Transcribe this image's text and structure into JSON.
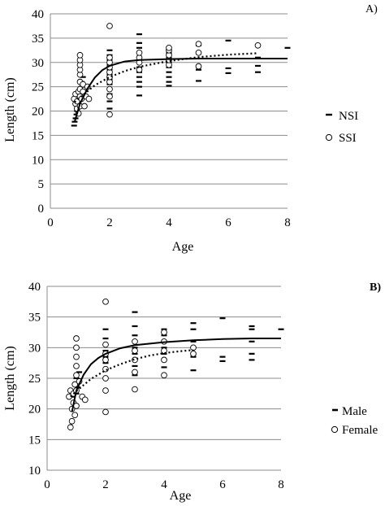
{
  "chart_data": [
    {
      "type": "scatter",
      "panel_label": "A)",
      "xlabel": "Age",
      "ylabel": "Length (cm)",
      "xlim": [
        0,
        8
      ],
      "ylim": [
        0,
        40
      ],
      "xticks": [
        0,
        2,
        4,
        6,
        8
      ],
      "yticks": [
        0,
        5,
        10,
        15,
        20,
        25,
        30,
        35,
        40
      ],
      "grid": "horizontal",
      "legend_position": "right",
      "series": [
        {
          "name": "NSI",
          "marker": "dash",
          "fit_line": "solid",
          "points": [
            [
              0.8,
              17.0
            ],
            [
              0.82,
              17.8
            ],
            [
              0.85,
              18.5
            ],
            [
              0.88,
              19.3
            ],
            [
              0.9,
              20.0
            ],
            [
              0.92,
              21.0
            ],
            [
              0.95,
              22.0
            ],
            [
              1.0,
              23.0
            ],
            [
              1.0,
              24.0
            ],
            [
              1.05,
              25.0
            ],
            [
              1.05,
              26.0
            ],
            [
              1.1,
              27.0
            ],
            [
              2.0,
              20.5
            ],
            [
              2.0,
              22.0
            ],
            [
              2.0,
              23.5
            ],
            [
              2.0,
              24.5
            ],
            [
              2.0,
              25.5
            ],
            [
              2.0,
              26.5
            ],
            [
              2.0,
              27.5
            ],
            [
              2.0,
              28.5
            ],
            [
              2.0,
              29.5
            ],
            [
              2.0,
              30.5
            ],
            [
              2.0,
              31.5
            ],
            [
              2.0,
              32.5
            ],
            [
              3.0,
              23.2
            ],
            [
              3.0,
              25.0
            ],
            [
              3.0,
              26.0
            ],
            [
              3.0,
              27.0
            ],
            [
              3.0,
              28.0
            ],
            [
              3.0,
              29.0
            ],
            [
              3.0,
              30.0
            ],
            [
              3.0,
              31.0
            ],
            [
              3.0,
              32.0
            ],
            [
              3.0,
              33.0
            ],
            [
              3.0,
              34.0
            ],
            [
              3.0,
              35.8
            ],
            [
              4.0,
              25.2
            ],
            [
              4.0,
              26.0
            ],
            [
              4.0,
              27.0
            ],
            [
              4.0,
              28.0
            ],
            [
              4.0,
              29.0
            ],
            [
              4.0,
              30.0
            ],
            [
              4.0,
              31.0
            ],
            [
              4.0,
              32.0
            ],
            [
              4.0,
              33.0
            ],
            [
              5.0,
              26.2
            ],
            [
              5.0,
              28.5
            ],
            [
              5.0,
              31.8
            ],
            [
              5.0,
              33.5
            ],
            [
              6.0,
              27.8
            ],
            [
              6.0,
              28.8
            ],
            [
              6.0,
              34.5
            ],
            [
              7.0,
              28.0
            ],
            [
              7.0,
              29.3
            ],
            [
              7.0,
              31.0
            ],
            [
              8.0,
              33.0
            ]
          ],
          "fit": [
            [
              0.82,
              17.8
            ],
            [
              1.0,
              21.5
            ],
            [
              1.25,
              24.6
            ],
            [
              1.5,
              26.9
            ],
            [
              1.75,
              28.4
            ],
            [
              2.0,
              29.3
            ],
            [
              2.5,
              30.2
            ],
            [
              3.0,
              30.5
            ],
            [
              4.0,
              30.7
            ],
            [
              5.0,
              30.8
            ],
            [
              6.0,
              30.8
            ],
            [
              7.0,
              30.8
            ],
            [
              8.0,
              30.8
            ]
          ]
        },
        {
          "name": "SSI",
          "marker": "circle",
          "fit_line": "dotted",
          "points": [
            [
              0.8,
              22.5
            ],
            [
              0.85,
              21.5
            ],
            [
              0.85,
              23.5
            ],
            [
              0.9,
              20.5
            ],
            [
              0.9,
              22.0
            ],
            [
              0.95,
              24.0
            ],
            [
              0.95,
              19.5
            ],
            [
              1.0,
              21.0
            ],
            [
              1.0,
              23.0
            ],
            [
              1.0,
              24.5
            ],
            [
              1.0,
              26.0
            ],
            [
              1.0,
              27.5
            ],
            [
              1.0,
              28.5
            ],
            [
              1.0,
              29.5
            ],
            [
              1.0,
              30.5
            ],
            [
              1.0,
              31.5
            ],
            [
              1.05,
              22.5
            ],
            [
              1.1,
              24.0
            ],
            [
              1.1,
              25.5
            ],
            [
              1.15,
              21.0
            ],
            [
              1.2,
              23.0
            ],
            [
              1.25,
              25.0
            ],
            [
              1.3,
              22.5
            ],
            [
              2.0,
              19.3
            ],
            [
              2.0,
              23.0
            ],
            [
              2.0,
              24.5
            ],
            [
              2.0,
              26.0
            ],
            [
              2.0,
              27.0
            ],
            [
              2.0,
              28.0
            ],
            [
              2.0,
              29.0
            ],
            [
              2.0,
              30.0
            ],
            [
              2.0,
              31.0
            ],
            [
              2.0,
              37.5
            ],
            [
              3.0,
              28.5
            ],
            [
              3.0,
              30.0
            ],
            [
              3.0,
              31.0
            ],
            [
              3.0,
              32.0
            ],
            [
              4.0,
              29.5
            ],
            [
              4.0,
              30.5
            ],
            [
              4.0,
              31.5
            ],
            [
              4.0,
              32.5
            ],
            [
              4.0,
              33.0
            ],
            [
              5.0,
              29.2
            ],
            [
              5.0,
              32.0
            ],
            [
              5.0,
              33.8
            ],
            [
              7.0,
              33.5
            ]
          ],
          "fit": [
            [
              0.82,
              21.8
            ],
            [
              1.0,
              22.8
            ],
            [
              1.5,
              25.3
            ],
            [
              2.0,
              27.0
            ],
            [
              2.5,
              28.2
            ],
            [
              3.0,
              29.1
            ],
            [
              4.0,
              30.3
            ],
            [
              5.0,
              31.1
            ],
            [
              6.0,
              31.6
            ],
            [
              7.0,
              31.9
            ]
          ]
        }
      ]
    },
    {
      "type": "scatter",
      "panel_label": "B)",
      "xlabel": "Age",
      "ylabel": "Length (cm)",
      "xlim": [
        0,
        8
      ],
      "ylim": [
        10,
        40
      ],
      "xticks": [
        0,
        2,
        4,
        6,
        8
      ],
      "yticks": [
        10,
        15,
        20,
        25,
        30,
        35,
        40
      ],
      "grid": "horizontal",
      "legend_position": "right",
      "series": [
        {
          "name": "Male",
          "marker": "dash",
          "fit_line": "solid",
          "points": [
            [
              0.85,
              22.0
            ],
            [
              0.9,
              23.0
            ],
            [
              0.95,
              24.0
            ],
            [
              1.0,
              22.5
            ],
            [
              1.0,
              25.0
            ],
            [
              1.05,
              23.5
            ],
            [
              1.1,
              26.0
            ],
            [
              2.0,
              23.0
            ],
            [
              2.0,
              25.0
            ],
            [
              2.0,
              26.5
            ],
            [
              2.0,
              27.5
            ],
            [
              2.0,
              28.5
            ],
            [
              2.0,
              29.5
            ],
            [
              2.0,
              30.5
            ],
            [
              2.0,
              31.5
            ],
            [
              2.0,
              33.0
            ],
            [
              3.0,
              25.5
            ],
            [
              3.0,
              27.0
            ],
            [
              3.0,
              28.0
            ],
            [
              3.0,
              29.0
            ],
            [
              3.0,
              30.0
            ],
            [
              3.0,
              31.0
            ],
            [
              3.0,
              32.0
            ],
            [
              3.0,
              33.5
            ],
            [
              3.0,
              35.8
            ],
            [
              4.0,
              26.8
            ],
            [
              4.0,
              29.0
            ],
            [
              4.0,
              30.0
            ],
            [
              4.0,
              31.0
            ],
            [
              4.0,
              32.0
            ],
            [
              4.0,
              33.0
            ],
            [
              5.0,
              26.3
            ],
            [
              5.0,
              28.5
            ],
            [
              5.0,
              31.0
            ],
            [
              5.0,
              33.0
            ],
            [
              5.0,
              34.0
            ],
            [
              6.0,
              27.8
            ],
            [
              6.0,
              28.5
            ],
            [
              6.0,
              34.8
            ],
            [
              7.0,
              28.0
            ],
            [
              7.0,
              29.0
            ],
            [
              7.0,
              31.0
            ],
            [
              7.0,
              33.0
            ],
            [
              7.0,
              33.5
            ],
            [
              8.0,
              33.0
            ]
          ],
          "fit": [
            [
              0.85,
              19.5
            ],
            [
              1.0,
              23.0
            ],
            [
              1.25,
              25.6
            ],
            [
              1.5,
              27.3
            ],
            [
              1.75,
              28.3
            ],
            [
              2.0,
              29.0
            ],
            [
              2.5,
              29.9
            ],
            [
              3.0,
              30.4
            ],
            [
              4.0,
              30.9
            ],
            [
              5.0,
              31.2
            ],
            [
              6.0,
              31.4
            ],
            [
              7.0,
              31.5
            ],
            [
              8.0,
              31.5
            ]
          ]
        },
        {
          "name": "Female",
          "marker": "circle",
          "fit_line": "dotted",
          "points": [
            [
              0.75,
              22.0
            ],
            [
              0.8,
              23.0
            ],
            [
              0.8,
              17.0
            ],
            [
              0.85,
              18.0
            ],
            [
              0.85,
              20.0
            ],
            [
              0.9,
              21.0
            ],
            [
              0.9,
              22.5
            ],
            [
              0.95,
              19.0
            ],
            [
              0.95,
              24.0
            ],
            [
              1.0,
              20.5
            ],
            [
              1.0,
              23.0
            ],
            [
              1.0,
              25.5
            ],
            [
              1.0,
              27.0
            ],
            [
              1.0,
              28.5
            ],
            [
              1.0,
              30.0
            ],
            [
              1.0,
              31.5
            ],
            [
              1.1,
              24.5
            ],
            [
              1.2,
              22.0
            ],
            [
              1.3,
              21.5
            ],
            [
              2.0,
              19.5
            ],
            [
              2.0,
              23.0
            ],
            [
              2.0,
              25.0
            ],
            [
              2.0,
              26.5
            ],
            [
              2.0,
              28.0
            ],
            [
              2.0,
              29.0
            ],
            [
              2.0,
              30.5
            ],
            [
              2.0,
              37.5
            ],
            [
              3.0,
              23.2
            ],
            [
              3.0,
              26.0
            ],
            [
              3.0,
              28.0
            ],
            [
              3.0,
              29.5
            ],
            [
              3.0,
              31.0
            ],
            [
              4.0,
              25.5
            ],
            [
              4.0,
              28.0
            ],
            [
              4.0,
              29.5
            ],
            [
              4.0,
              31.0
            ],
            [
              4.0,
              32.5
            ],
            [
              5.0,
              29.0
            ],
            [
              5.0,
              30.0
            ]
          ],
          "fit": [
            [
              0.8,
              22.0
            ],
            [
              1.0,
              22.9
            ],
            [
              1.5,
              24.9
            ],
            [
              2.0,
              26.3
            ],
            [
              2.5,
              27.3
            ],
            [
              3.0,
              28.1
            ],
            [
              3.5,
              28.7
            ],
            [
              4.0,
              29.1
            ],
            [
              4.5,
              29.4
            ],
            [
              5.0,
              29.6
            ]
          ]
        }
      ]
    }
  ]
}
